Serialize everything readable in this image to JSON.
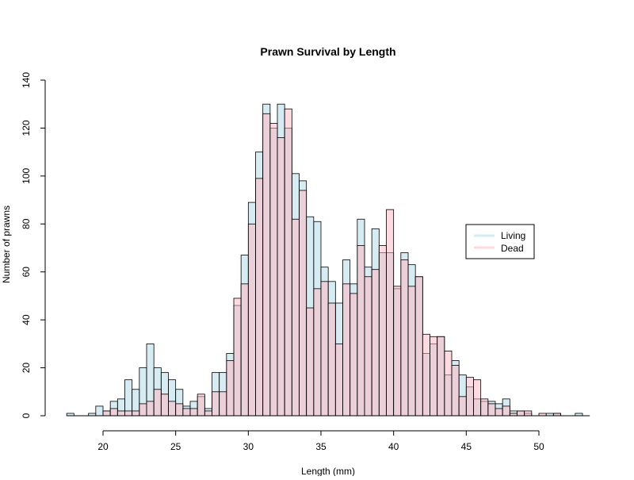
{
  "chart_data": {
    "type": "bar",
    "title": "Prawn Survival by Length",
    "xlabel": "Length (mm)",
    "ylabel": "Number of prawns",
    "xlim": [
      17.5,
      53.5
    ],
    "ylim": [
      0,
      140
    ],
    "x_ticks": [
      20,
      25,
      30,
      35,
      40,
      45,
      50
    ],
    "y_ticks": [
      0,
      20,
      40,
      60,
      80,
      100,
      120,
      140
    ],
    "bin_width": 0.5,
    "bin_starts": [
      17.5,
      18,
      18.5,
      19,
      19.5,
      20,
      20.5,
      21,
      21.5,
      22,
      22.5,
      23,
      23.5,
      24,
      24.5,
      25,
      25.5,
      26,
      26.5,
      27,
      27.5,
      28,
      28.5,
      29,
      29.5,
      30,
      30.5,
      31,
      31.5,
      32,
      32.5,
      33,
      33.5,
      34,
      34.5,
      35,
      35.5,
      36,
      36.5,
      37,
      37.5,
      38,
      38.5,
      39,
      39.5,
      40,
      40.5,
      41,
      41.5,
      42,
      42.5,
      43,
      43.5,
      44,
      44.5,
      45,
      45.5,
      46,
      46.5,
      47,
      47.5,
      48,
      48.5,
      49,
      49.5,
      50,
      50.5,
      51,
      51.5,
      52,
      52.5,
      53
    ],
    "series": [
      {
        "name": "Living",
        "color": "#add8e6",
        "values": [
          1,
          0,
          0,
          1,
          4,
          2,
          6,
          7,
          15,
          11,
          20,
          30,
          20,
          18,
          15,
          11,
          4,
          6,
          8,
          3,
          18,
          18,
          26,
          46,
          67,
          89,
          110,
          130,
          120,
          130,
          120,
          101,
          98,
          83,
          81,
          62,
          56,
          47,
          65,
          55,
          82,
          62,
          78,
          68,
          68,
          53,
          68,
          63,
          58,
          26,
          30,
          33,
          17,
          23,
          17,
          12,
          7,
          6,
          6,
          5,
          7,
          2,
          2,
          1,
          0,
          0,
          1,
          1,
          0,
          0,
          1,
          0
        ],
        "alpha": 0.5
      },
      {
        "name": "Dead",
        "color": "#ffb6c1",
        "values": [
          0,
          0,
          0,
          0,
          0,
          2,
          3,
          2,
          2,
          2,
          5,
          6,
          11,
          9,
          6,
          5,
          3,
          3,
          9,
          2,
          10,
          10,
          23,
          49,
          55,
          80,
          99,
          126,
          122,
          116,
          128,
          82,
          94,
          45,
          53,
          56,
          47,
          30,
          55,
          51,
          71,
          58,
          61,
          71,
          86,
          54,
          65,
          54,
          58,
          34,
          33,
          33,
          27,
          21,
          8,
          16,
          15,
          7,
          5,
          3,
          4,
          1,
          2,
          2,
          0,
          1,
          0,
          1,
          0,
          0,
          0,
          0
        ],
        "alpha": 0.5
      }
    ],
    "legend": {
      "placement": "right",
      "entries": [
        "Living",
        "Dead"
      ]
    },
    "grid": false
  }
}
